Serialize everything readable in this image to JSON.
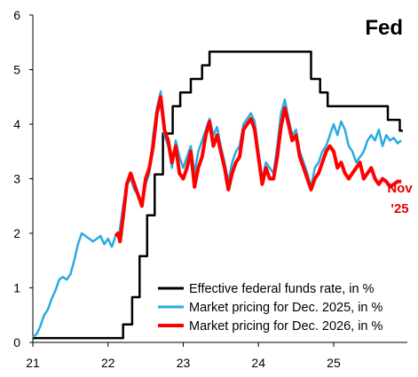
{
  "chart_data": {
    "type": "line",
    "title": "Fed",
    "xlabel": "",
    "ylabel": "",
    "xlim": [
      2021.0,
      2025.98
    ],
    "ylim": [
      0,
      6
    ],
    "y_ticks": [
      0,
      1,
      2,
      3,
      4,
      5,
      6
    ],
    "x_ticks": [
      {
        "value": 2021,
        "label": "21"
      },
      {
        "value": 2022,
        "label": "22"
      },
      {
        "value": 2023,
        "label": "23"
      },
      {
        "value": 2024,
        "label": "24"
      },
      {
        "value": 2025,
        "label": "25"
      }
    ],
    "grid": false,
    "legend_position": "bottom-right",
    "annotation": {
      "lines": [
        "Nov",
        "'25"
      ],
      "x": 2025.88,
      "y": 2.75
    },
    "series": [
      {
        "name": "Effective federal funds rate, in %",
        "color": "#000000",
        "step": true,
        "x": [
          2021.0,
          2022.2,
          2022.32,
          2022.42,
          2022.52,
          2022.62,
          2022.73,
          2022.86,
          2022.96,
          2023.1,
          2023.25,
          2023.35,
          2023.57,
          2024.7,
          2024.82,
          2024.92,
          2025.72,
          2025.88
        ],
        "y": [
          0.08,
          0.33,
          0.83,
          1.58,
          2.33,
          3.08,
          3.83,
          4.33,
          4.58,
          4.83,
          5.08,
          5.33,
          5.33,
          4.83,
          4.58,
          4.33,
          4.08,
          3.88
        ]
      },
      {
        "name": "Market pricing for Dec. 2025, in %",
        "color": "#29abe2",
        "step": false,
        "x": [
          2021.0,
          2021.05,
          2021.1,
          2021.15,
          2021.2,
          2021.25,
          2021.3,
          2021.35,
          2021.4,
          2021.45,
          2021.5,
          2021.55,
          2021.6,
          2021.65,
          2021.7,
          2021.75,
          2021.8,
          2021.85,
          2021.9,
          2021.95,
          2022.0,
          2022.05,
          2022.1,
          2022.15,
          2022.2,
          2022.25,
          2022.3,
          2022.35,
          2022.4,
          2022.45,
          2022.5,
          2022.55,
          2022.6,
          2022.65,
          2022.7,
          2022.75,
          2022.8,
          2022.85,
          2022.9,
          2022.95,
          2023.0,
          2023.05,
          2023.1,
          2023.15,
          2023.2,
          2023.25,
          2023.3,
          2023.35,
          2023.4,
          2023.45,
          2023.5,
          2023.55,
          2023.6,
          2023.65,
          2023.7,
          2023.75,
          2023.8,
          2023.85,
          2023.9,
          2023.95,
          2024.0,
          2024.05,
          2024.1,
          2024.15,
          2024.2,
          2024.25,
          2024.3,
          2024.35,
          2024.4,
          2024.45,
          2024.5,
          2024.55,
          2024.6,
          2024.65,
          2024.7,
          2024.75,
          2024.8,
          2024.85,
          2024.9,
          2024.95,
          2025.0,
          2025.05,
          2025.1,
          2025.15,
          2025.2,
          2025.25,
          2025.3,
          2025.35,
          2025.4,
          2025.45,
          2025.5,
          2025.55,
          2025.6,
          2025.65,
          2025.7,
          2025.75,
          2025.8,
          2025.85,
          2025.9
        ],
        "y": [
          0.1,
          0.15,
          0.3,
          0.5,
          0.6,
          0.8,
          0.95,
          1.15,
          1.2,
          1.15,
          1.25,
          1.5,
          1.8,
          2.0,
          1.95,
          1.9,
          1.85,
          1.9,
          1.95,
          1.8,
          1.9,
          1.75,
          1.95,
          2.0,
          2.5,
          2.9,
          3.0,
          2.8,
          2.7,
          2.5,
          2.9,
          3.1,
          3.8,
          4.3,
          4.6,
          3.8,
          3.6,
          3.2,
          3.7,
          3.4,
          3.2,
          3.4,
          3.6,
          3.1,
          3.5,
          3.7,
          3.9,
          4.1,
          3.8,
          3.95,
          3.6,
          3.3,
          2.95,
          3.3,
          3.5,
          3.6,
          4.0,
          4.1,
          4.2,
          4.05,
          3.5,
          3.0,
          3.3,
          3.2,
          3.1,
          3.6,
          4.2,
          4.45,
          4.1,
          3.8,
          3.9,
          3.5,
          3.3,
          3.1,
          2.85,
          3.2,
          3.3,
          3.5,
          3.6,
          3.8,
          4.0,
          3.8,
          4.05,
          3.9,
          3.6,
          3.5,
          3.3,
          3.4,
          3.5,
          3.7,
          3.8,
          3.7,
          3.9,
          3.6,
          3.8,
          3.7,
          3.75,
          3.65,
          3.7
        ]
      },
      {
        "name": "Market pricing for Dec. 2026, in %",
        "color": "#ff0000",
        "step": false,
        "x": [
          2022.1,
          2022.13,
          2022.16,
          2022.2,
          2022.25,
          2022.3,
          2022.35,
          2022.4,
          2022.45,
          2022.5,
          2022.55,
          2022.6,
          2022.65,
          2022.7,
          2022.75,
          2022.8,
          2022.85,
          2022.9,
          2022.95,
          2023.0,
          2023.05,
          2023.1,
          2023.15,
          2023.2,
          2023.25,
          2023.3,
          2023.35,
          2023.4,
          2023.45,
          2023.5,
          2023.55,
          2023.6,
          2023.65,
          2023.7,
          2023.75,
          2023.8,
          2023.85,
          2023.9,
          2023.95,
          2024.0,
          2024.05,
          2024.1,
          2024.15,
          2024.2,
          2024.25,
          2024.3,
          2024.35,
          2024.4,
          2024.45,
          2024.5,
          2024.55,
          2024.6,
          2024.65,
          2024.7,
          2024.75,
          2024.8,
          2024.85,
          2024.9,
          2024.95,
          2025.0,
          2025.05,
          2025.1,
          2025.15,
          2025.2,
          2025.25,
          2025.3,
          2025.35,
          2025.4,
          2025.45,
          2025.5,
          2025.55,
          2025.6,
          2025.65,
          2025.7,
          2025.75,
          2025.8,
          2025.85,
          2025.9
        ],
        "y": [
          1.95,
          2.0,
          1.85,
          2.3,
          2.9,
          3.1,
          2.9,
          2.7,
          2.5,
          3.0,
          3.2,
          3.6,
          4.2,
          4.5,
          3.9,
          3.7,
          3.3,
          3.6,
          3.1,
          3.0,
          3.2,
          3.5,
          2.85,
          3.2,
          3.4,
          3.8,
          4.05,
          3.6,
          3.8,
          3.5,
          3.2,
          2.8,
          3.1,
          3.3,
          3.4,
          3.9,
          4.0,
          4.1,
          3.9,
          3.4,
          2.9,
          3.2,
          3.0,
          3.0,
          3.4,
          3.95,
          4.3,
          4.0,
          3.7,
          3.8,
          3.4,
          3.2,
          3.0,
          2.8,
          3.0,
          3.1,
          3.3,
          3.5,
          3.6,
          3.5,
          3.2,
          3.3,
          3.1,
          3.0,
          3.1,
          3.2,
          3.3,
          3.0,
          3.1,
          3.2,
          3.0,
          2.9,
          3.0,
          2.95,
          2.85,
          2.9,
          2.95,
          2.95
        ]
      }
    ]
  }
}
